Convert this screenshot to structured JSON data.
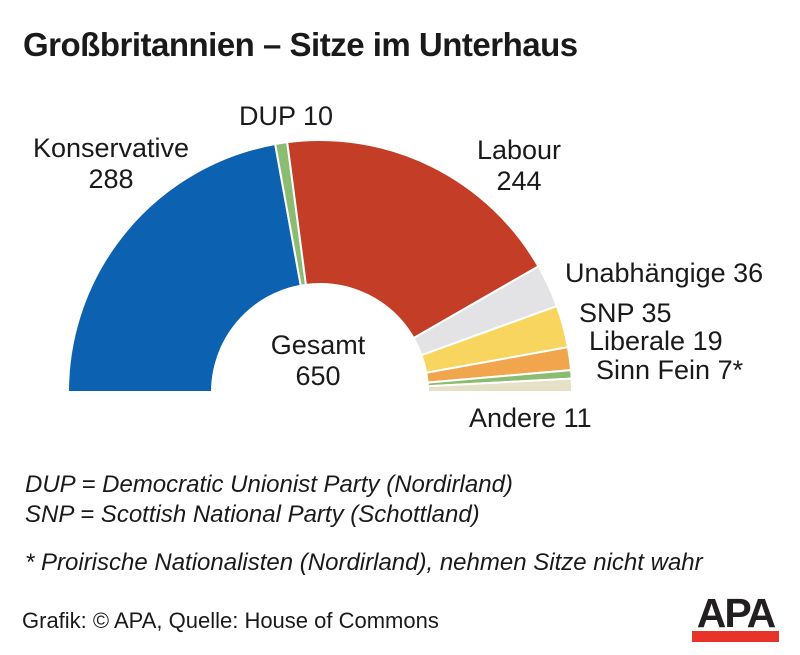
{
  "title": "Großbritannien – Sitze im Unterhaus",
  "chart_data": {
    "type": "pie",
    "variant": "semicircle-donut",
    "title": "Großbritannien – Sitze im Unterhaus",
    "center_label": "Gesamt",
    "total": 650,
    "start_angle_deg": 180,
    "end_angle_deg": 0,
    "legend_position": "around-arc",
    "series": [
      {
        "name": "Konservative",
        "value": 288,
        "color": "#0C62B0"
      },
      {
        "name": "DUP",
        "value": 10,
        "color": "#8CBB72"
      },
      {
        "name": "Labour",
        "value": 244,
        "color": "#C43D26"
      },
      {
        "name": "Unabhängige",
        "value": 36,
        "color": "#E3E3E6"
      },
      {
        "name": "SNP",
        "value": 35,
        "color": "#F8D55E"
      },
      {
        "name": "Liberale",
        "value": 19,
        "color": "#F1A64D"
      },
      {
        "name": "Sinn Fein",
        "value": 7,
        "color": "#8CBB72"
      },
      {
        "name": "Andere",
        "value": 11,
        "color": "#E6E0C6"
      }
    ]
  },
  "labels": {
    "konservative": "Konservative\n288",
    "dup": "DUP 10",
    "labour": "Labour\n244",
    "unabhaengige": "Unabhängige 36",
    "snp": "SNP 35",
    "liberale": "Liberale 19",
    "sinn_fein": "Sinn Fein 7*",
    "andere": "Andere 11",
    "gesamt": "Gesamt\n650"
  },
  "footnotes": [
    "DUP = Democratic Unionist Party (Nordirland)",
    "SNP = Scottish National Party (Schottland)",
    "* Proirische Nationalisten (Nordirland), nehmen Sitze nicht wahr"
  ],
  "footer": {
    "credit": "Grafik: © APA, Quelle: House of Commons",
    "logo_text": "APA",
    "logo_bar_color": "#E8332A"
  }
}
